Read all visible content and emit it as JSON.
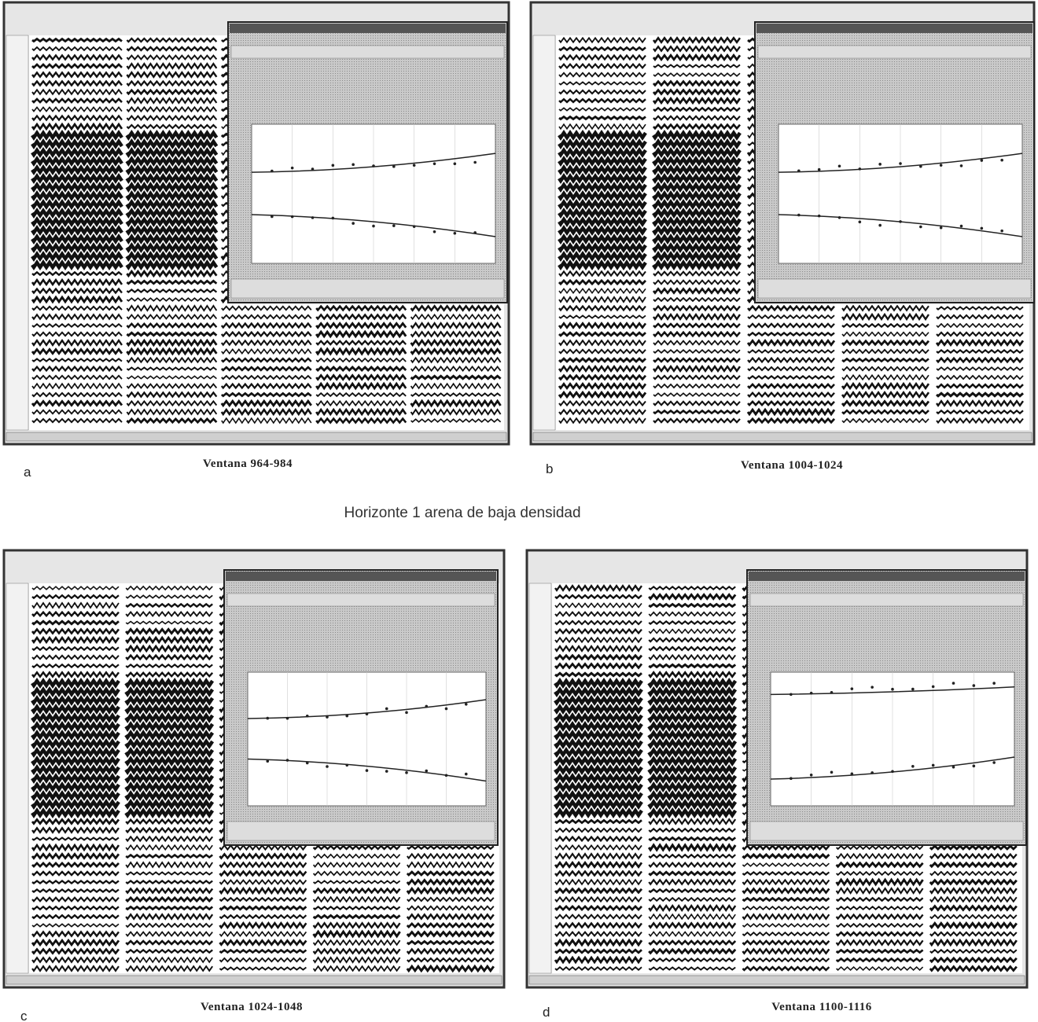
{
  "caption": "Horizonte 1 arena de baja densidad",
  "panels": [
    {
      "letter": "a",
      "label": "Ventana 964-984"
    },
    {
      "letter": "b",
      "label": "Ventana 1004-1024"
    },
    {
      "letter": "c",
      "label": "Ventana 1024-1048"
    },
    {
      "letter": "d",
      "label": "Ventana 1100-1116"
    }
  ]
}
